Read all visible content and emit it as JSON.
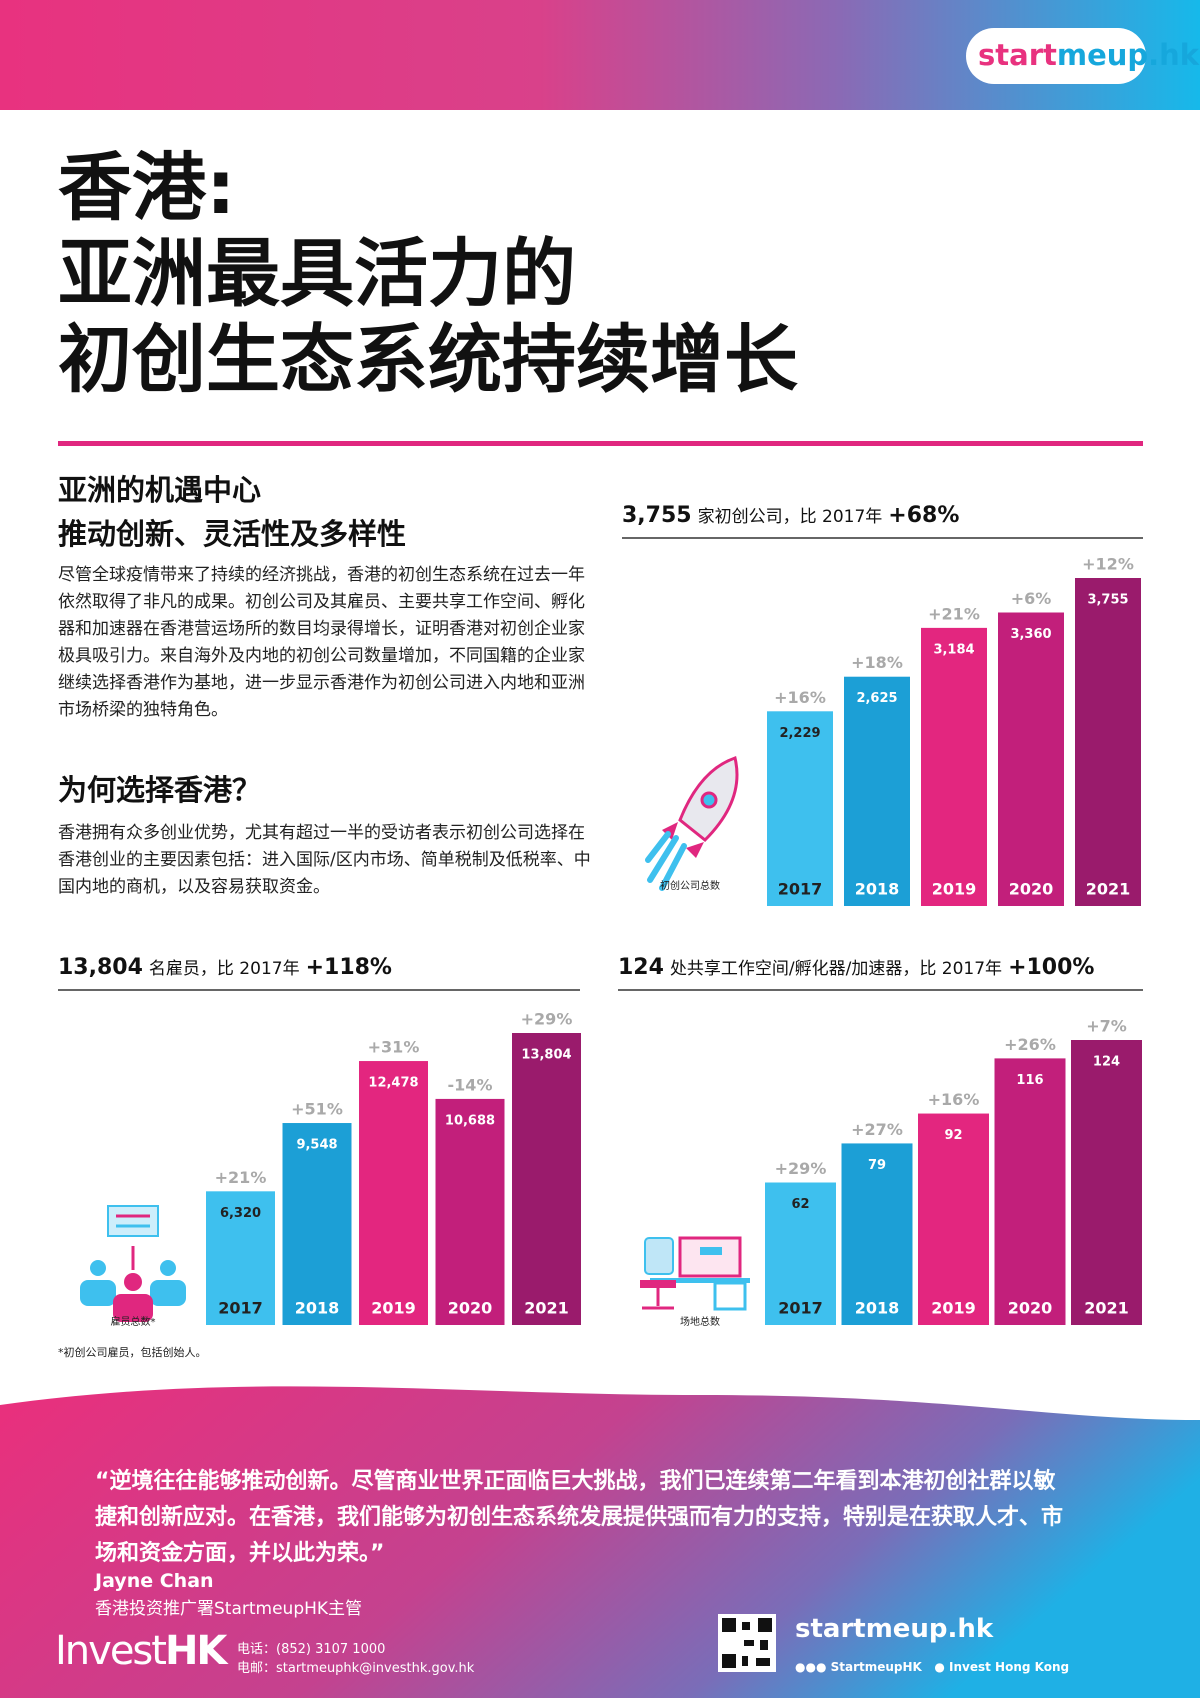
{
  "logo": [
    "start",
    "meup.hk"
  ],
  "title": [
    "香港:",
    "亚洲最具活力的",
    "初创生态系统持续增长"
  ],
  "sections": [
    {
      "heading": [
        "亚洲的机遇中心",
        "推动创新、灵活性及多样性"
      ],
      "text": "尽管全球疫情带来了持续的经济挑战，香港的初创生态系统在过去一年依然取得了非凡的成果。初创公司及其雇员、主要共享工作空间、孵化器和加速器在香港营运场所的数目均录得增长，证明香港对初创企业家极具吸引力。来自海外及内地的初创公司数量增加，不同国籍的企业家继续选择香港作为基地，进一步显示香港作为初创公司进入内地和亚洲市场桥梁的独特角色。"
    },
    {
      "heading": [
        "为何选择香港？"
      ],
      "text": "香港拥有众多创业优势，尤其有超过一半的受访者表示初创公司选择在香港创业的主要因素包括：进入国际/区内市场、简单税制及低税率、中国内地的商机，以及容易获取资金。"
    }
  ],
  "chart_data": [
    {
      "type": "bar",
      "headline": [
        "3,755",
        "家初创公司，比 2017年",
        "+68%"
      ],
      "label": "初创公司总数",
      "categories": [
        "2017",
        "2018",
        "2019",
        "2020",
        "2021"
      ],
      "values": [
        2229,
        2625,
        3184,
        3360,
        3755
      ],
      "value_labels": [
        "2,229",
        "2,625",
        "3,184",
        "3,360",
        "3,755"
      ],
      "annotations": [
        "+16%",
        "+18%",
        "+21%",
        "+6%",
        "+12%"
      ],
      "colors": [
        "#3ec0ee",
        "#1c9fd6",
        "#e3267f",
        "#c21f7b",
        "#9a1b6c"
      ]
    },
    {
      "type": "bar",
      "headline": [
        "13,804",
        "名雇员，比 2017年",
        "+118%"
      ],
      "label": "雇员总数*",
      "categories": [
        "2017",
        "2018",
        "2019",
        "2020",
        "2021"
      ],
      "values": [
        6320,
        9548,
        12478,
        10688,
        13804
      ],
      "value_labels": [
        "6,320",
        "9,548",
        "12,478",
        "10,688",
        "13,804"
      ],
      "annotations": [
        "+21%",
        "+51%",
        "+31%",
        "-14%",
        "+29%"
      ],
      "colors": [
        "#3ec0ee",
        "#1c9fd6",
        "#e3267f",
        "#c21f7b",
        "#9a1b6c"
      ]
    },
    {
      "type": "bar",
      "headline": [
        "124",
        "处共享工作空间/孵化器/加速器，比 2017年",
        "+100%"
      ],
      "label": "场地总数",
      "categories": [
        "2017",
        "2018",
        "2019",
        "2020",
        "2021"
      ],
      "values": [
        62,
        79,
        92,
        116,
        124
      ],
      "annotations": [
        "+29%",
        "+27%",
        "+16%",
        "+26%",
        "+7%"
      ],
      "colors": [
        "#3ec0ee",
        "#1c9fd6",
        "#e3267f",
        "#c21f7b",
        "#9a1b6c"
      ]
    }
  ],
  "footnote": "*初创公司雇员，包括创始人。",
  "quote": "“逆境往往能够推动创新。尽管商业世界正面临巨大挑战，我们已连续第二年看到本港初创社群以敏捷和创新应对。在香港，我们能够为初创生态系统发展提供强而有力的支持，特别是在获取人才、市场和资金方面，并以此为荣。”",
  "speaker": {
    "name": "Jayne Chan",
    "role": "香港投资推广署StartmeupHK主管"
  },
  "footer": {
    "brand": [
      "Invest",
      "HK"
    ],
    "phone": "电话：(852) 3107 1000",
    "email": "电邮：startmeuphk@investhk.gov.hk",
    "site": "startmeup.hk",
    "social": [
      "StartmeupHK",
      "Invest Hong Kong"
    ]
  }
}
